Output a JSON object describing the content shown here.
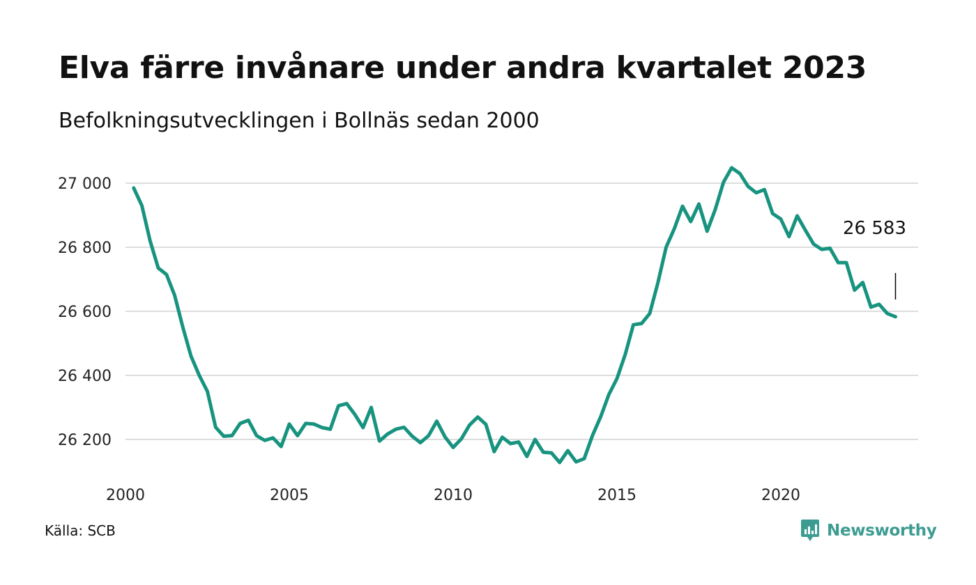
{
  "title": "Elva färre invånare under andra kvartalet 2023",
  "subtitle": "Befolkningsutvecklingen i Bollnäs sedan 2000",
  "source": "Källa: SCB",
  "brand": "Newsworthy",
  "colors": {
    "line": "#17937f",
    "grid": "#dddddd",
    "brand": "#3d9c92"
  },
  "chart_data": {
    "type": "line",
    "title": "Elva färre invånare under andra kvartalet 2023",
    "subtitle": "Befolkningsutvecklingen i Bollnäs sedan 2000",
    "xlabel": "",
    "ylabel": "",
    "xlim": [
      2000,
      2023.5
    ],
    "ylim": [
      26100,
      27050
    ],
    "grid": "horizontal",
    "legend": "none",
    "x_ticks": [
      2000,
      2005,
      2010,
      2015,
      2020
    ],
    "x_tick_labels": [
      "2000",
      "2005",
      "2010",
      "2015",
      "2020"
    ],
    "y_ticks": [
      26200,
      26400,
      26600,
      26800,
      27000
    ],
    "y_tick_labels": [
      "26 200",
      "26 400",
      "26 600",
      "26 800",
      "27 000"
    ],
    "annotation": {
      "x": 2023.5,
      "y": 26583,
      "label": "26 583"
    },
    "series": [
      {
        "x": [
          2000.25,
          2000.5,
          2000.75,
          2001,
          2001.25,
          2001.5,
          2001.75,
          2002,
          2002.25,
          2002.5,
          2002.75,
          2003,
          2003.25,
          2003.5,
          2003.75,
          2004,
          2004.25,
          2004.5,
          2004.75,
          2005,
          2005.25,
          2005.5,
          2005.75,
          2006,
          2006.25,
          2006.5,
          2006.75,
          2007,
          2007.25,
          2007.5,
          2007.75,
          2008,
          2008.25,
          2008.5,
          2008.75,
          2009,
          2009.25,
          2009.5,
          2009.75,
          2010,
          2010.25,
          2010.5,
          2010.75,
          2011,
          2011.25,
          2011.5,
          2011.75,
          2012,
          2012.25,
          2012.5,
          2012.75,
          2013,
          2013.25,
          2013.5,
          2013.75,
          2014,
          2014.25,
          2014.5,
          2014.75,
          2015,
          2015.25,
          2015.5,
          2015.75,
          2016,
          2016.25,
          2016.5,
          2016.75,
          2017,
          2017.25,
          2017.5,
          2017.75,
          2018,
          2018.25,
          2018.5,
          2018.75,
          2019,
          2019.25,
          2019.5,
          2019.75,
          2020,
          2020.25,
          2020.5,
          2020.75,
          2021,
          2021.25,
          2021.5,
          2021.75,
          2022,
          2022.25,
          2022.5,
          2022.75,
          2023,
          2023.25,
          2023.5
        ],
        "values": [
          26985,
          26930,
          26820,
          26735,
          26715,
          26650,
          26550,
          26460,
          26400,
          26350,
          26238,
          26210,
          26212,
          26250,
          26260,
          26212,
          26197,
          26205,
          26178,
          26248,
          26212,
          26250,
          26248,
          26237,
          26232,
          26305,
          26312,
          26278,
          26237,
          26300,
          26195,
          26217,
          26232,
          26238,
          26210,
          26190,
          26212,
          26257,
          26208,
          26175,
          26202,
          26245,
          26270,
          26247,
          26162,
          26207,
          26187,
          26192,
          26147,
          26200,
          26160,
          26158,
          26128,
          26165,
          26130,
          26140,
          26212,
          26270,
          26340,
          26390,
          26465,
          26558,
          26562,
          26593,
          26690,
          26800,
          26858,
          26928,
          26880,
          26935,
          26850,
          26918,
          27003,
          27048,
          27030,
          26990,
          26970,
          26980,
          26905,
          26888,
          26833,
          26898,
          26853,
          26810,
          26793,
          26797,
          26752,
          26752,
          26666,
          26690,
          26613,
          26622,
          26593,
          26583
        ]
      }
    ]
  }
}
